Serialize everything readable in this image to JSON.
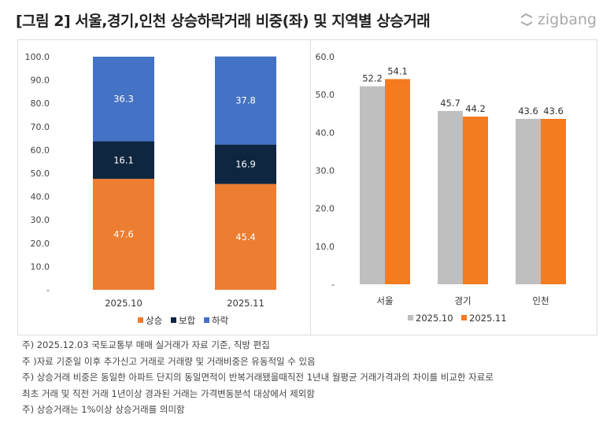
{
  "title": "[그림 2] 서울,경기,인천 상승하락거래 비중(좌) 및 지역별 상승거래",
  "logo": "zigbang",
  "chart_data": [
    {
      "type": "bar",
      "stacked": true,
      "categories": [
        "2025.10",
        "2025.11"
      ],
      "series": [
        {
          "name": "상승",
          "values": [
            47.6,
            45.4
          ],
          "color": "#ED7D31"
        },
        {
          "name": "보합",
          "values": [
            16.1,
            16.9
          ],
          "color": "#0F2640"
        },
        {
          "name": "하락",
          "values": [
            36.3,
            37.8
          ],
          "color": "#4472C4"
        }
      ],
      "ylim": [
        0,
        100
      ],
      "yticks": [
        "-",
        "10.0",
        "20.0",
        "30.0",
        "40.0",
        "50.0",
        "60.0",
        "70.0",
        "80.0",
        "90.0",
        "100.0"
      ],
      "legend": "bottom",
      "grid": false
    },
    {
      "type": "bar",
      "categories": [
        "서울",
        "경기",
        "인천"
      ],
      "series": [
        {
          "name": "2025.10",
          "values": [
            52.2,
            45.7,
            43.6
          ],
          "color": "#BFBFBF"
        },
        {
          "name": "2025.11",
          "values": [
            54.1,
            44.2,
            43.6
          ],
          "color": "#F47B20"
        }
      ],
      "ylim": [
        0,
        60
      ],
      "yticks": [
        "-",
        "10.0",
        "20.0",
        "30.0",
        "40.0",
        "50.0",
        "60.0"
      ],
      "legend": "bottom",
      "grid": false
    }
  ],
  "notes": [
    "주) 2025.12.03 국토교통부 매매 실거래가 자료 기준, 직방 편집",
    "주 )자료 기준일 이후 추가신고 거래로 거래량 및 거래비중은 유동적일 수 있음",
    "주) 상승거래 비중은 동일한 아파트 단지의 동일면적이 반복거래됐을때직전 1년내 월평균 거래가격과의 차이를 비교한 자료로",
    "최초 거래 및 직전 거래 1년이상 경과된 거래는 가격변동분석 대상에서 제외함",
    "주) 상승거래는 1%이상 상승거래를 의미함"
  ]
}
